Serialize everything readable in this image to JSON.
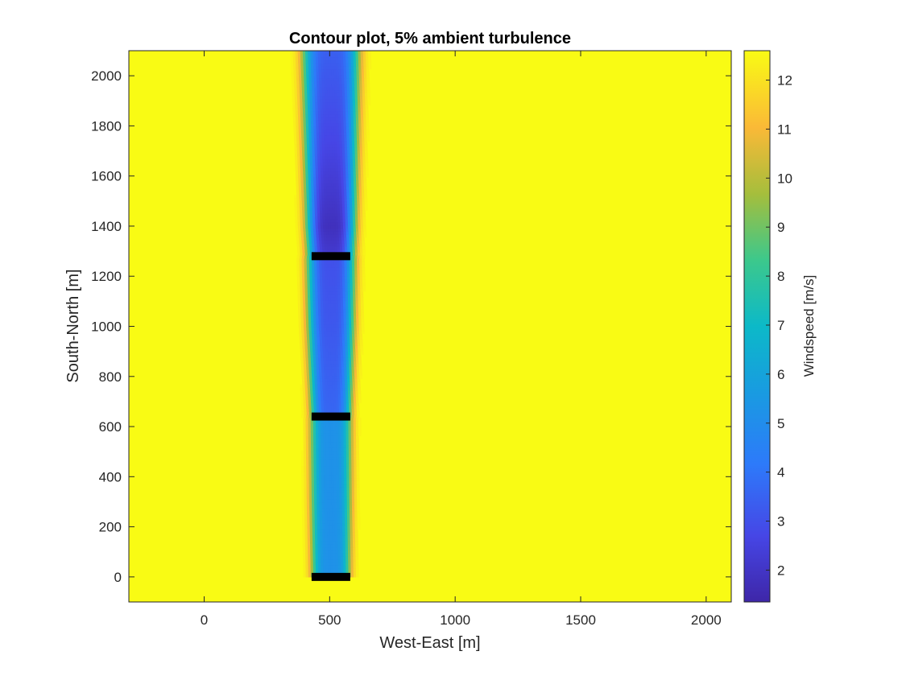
{
  "chart_data": {
    "type": "heatmap",
    "title": "Contour plot, 5% ambient turbulence",
    "xlabel": "West-East [m]",
    "ylabel": "South-North [m]",
    "colorbar_label": "Windspeed [m/s]",
    "xlim": [
      -300,
      2100
    ],
    "ylim": [
      -100,
      2100
    ],
    "xticks": [
      0,
      500,
      1000,
      1500,
      2000
    ],
    "yticks": [
      0,
      200,
      400,
      600,
      800,
      1000,
      1200,
      1400,
      1600,
      1800,
      2000
    ],
    "clim": [
      1.35,
      12.6
    ],
    "cticks": [
      2,
      3,
      4,
      5,
      6,
      7,
      8,
      9,
      10,
      11,
      12
    ],
    "colormap": "parula",
    "ambient_windspeed": 12.6,
    "wake_center_x": 505,
    "turbines": [
      {
        "x": 505,
        "y": 0,
        "rotor_diameter": 154
      },
      {
        "x": 505,
        "y": 640,
        "rotor_diameter": 154
      },
      {
        "x": 505,
        "y": 1280,
        "rotor_diameter": 154
      }
    ],
    "wake_profile": [
      {
        "y": 0,
        "min_speed": 5.2,
        "half_width": 75
      },
      {
        "y": 300,
        "min_speed": 5.2,
        "half_width": 78
      },
      {
        "y": 630,
        "min_speed": 5.2,
        "half_width": 80
      },
      {
        "y": 650,
        "min_speed": 3.6,
        "half_width": 78
      },
      {
        "y": 1000,
        "min_speed": 3.2,
        "half_width": 88
      },
      {
        "y": 1270,
        "min_speed": 3.0,
        "half_width": 92
      },
      {
        "y": 1290,
        "min_speed": 2.2,
        "half_width": 90
      },
      {
        "y": 1400,
        "min_speed": 1.8,
        "half_width": 94
      },
      {
        "y": 1700,
        "min_speed": 2.6,
        "half_width": 100
      },
      {
        "y": 2100,
        "min_speed": 3.4,
        "half_width": 108
      }
    ]
  }
}
